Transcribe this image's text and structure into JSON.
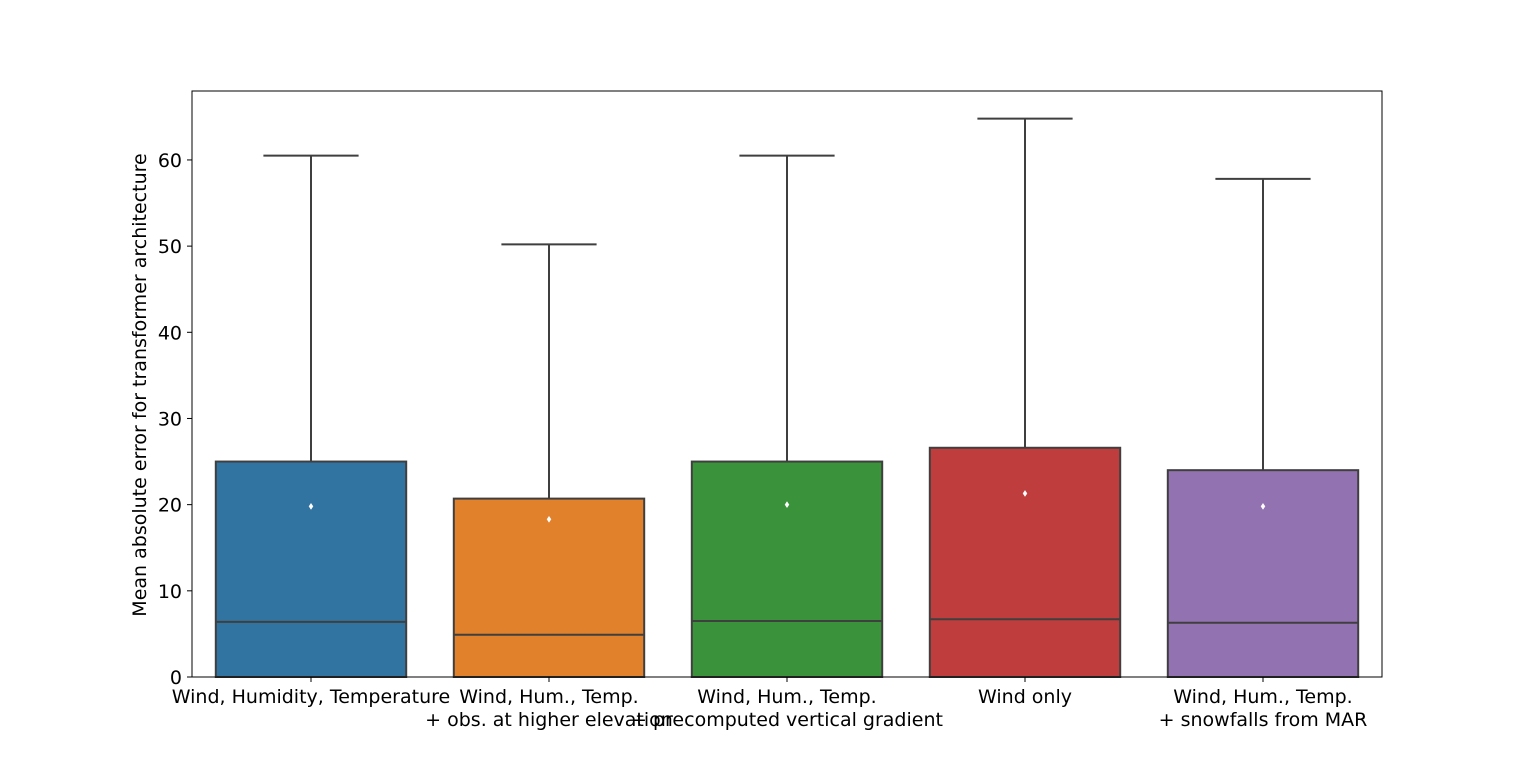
{
  "chart_data": {
    "type": "box",
    "title": "",
    "xlabel": "",
    "ylabel": "Mean absolute error for transformer architecture",
    "ylim": [
      0,
      68
    ],
    "yticks": [
      0,
      10,
      20,
      30,
      40,
      50,
      60
    ],
    "grid": false,
    "categories": [
      [
        "Wind, Humidity, Temperature"
      ],
      [
        "Wind, Hum., Temp.",
        "+ obs. at higher elevation"
      ],
      [
        "Wind, Hum., Temp.",
        "+ precomputed vertical gradient"
      ],
      [
        "Wind only"
      ],
      [
        "Wind, Hum., Temp.",
        "+ snowfalls from MAR"
      ]
    ],
    "boxes": [
      {
        "whisker_low": 0,
        "q1": 0,
        "median": 6.4,
        "q3": 25.0,
        "whisker_high": 60.5,
        "mean": 19.8,
        "color": "#3274a1"
      },
      {
        "whisker_low": 0,
        "q1": 0,
        "median": 4.9,
        "q3": 20.7,
        "whisker_high": 50.2,
        "mean": 18.3,
        "color": "#e1812c"
      },
      {
        "whisker_low": 0,
        "q1": 0,
        "median": 6.5,
        "q3": 25.0,
        "whisker_high": 60.5,
        "mean": 20.0,
        "color": "#3a923a"
      },
      {
        "whisker_low": 0,
        "q1": 0,
        "median": 6.7,
        "q3": 26.6,
        "whisker_high": 64.8,
        "mean": 21.3,
        "color": "#c03d3e"
      },
      {
        "whisker_low": 0,
        "q1": 0,
        "median": 6.3,
        "q3": 24.0,
        "whisker_high": 57.8,
        "mean": 19.8,
        "color": "#9372b2"
      }
    ]
  }
}
